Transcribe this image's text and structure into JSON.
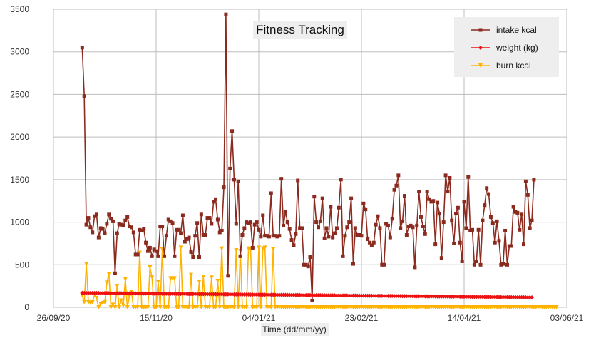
{
  "chart_data": {
    "type": "line",
    "title": "Fitness Tracking",
    "xlabel": "Time (dd/mm/yy)",
    "ylabel": "",
    "xlim": [
      "2020-09-26",
      "2021-06-03"
    ],
    "ylim": [
      0,
      3500
    ],
    "x_ticks": [
      "26/09/20",
      "15/11/20",
      "04/01/21",
      "23/02/21",
      "14/04/21",
      "03/06/21"
    ],
    "y_ticks": [
      0,
      500,
      1000,
      1500,
      2000,
      2500,
      3000,
      3500
    ],
    "grid": true,
    "legend_position": "top-right",
    "series": [
      {
        "name": "intake kcal",
        "color": "#8b2a1e",
        "marker": "square",
        "start": "2020-10-10",
        "step_days": 1,
        "values": [
          3050,
          2480,
          970,
          1050,
          940,
          880,
          1070,
          1090,
          820,
          930,
          920,
          870,
          980,
          1090,
          1040,
          1010,
          400,
          870,
          980,
          970,
          960,
          1020,
          1060,
          950,
          940,
          880,
          620,
          620,
          910,
          900,
          920,
          760,
          660,
          700,
          600,
          680,
          660,
          600,
          950,
          950,
          600,
          840,
          1030,
          1010,
          990,
          600,
          910,
          910,
          870,
          1080,
          770,
          800,
          820,
          650,
          590,
          840,
          990,
          590,
          1090,
          850,
          850,
          1050,
          1050,
          980,
          1240,
          1270,
          1030,
          880,
          900,
          1410,
          3440,
          370,
          1630,
          2070,
          1500,
          980,
          1480,
          600,
          850,
          930,
          1000,
          990,
          1000,
          700,
          970,
          1000,
          910,
          830,
          1080,
          840,
          840,
          830,
          1340,
          840,
          840,
          830,
          840,
          1510,
          960,
          1120,
          1000,
          920,
          790,
          730,
          860,
          1490,
          930,
          930,
          500,
          500,
          480,
          590,
          80,
          1300,
          1000,
          940,
          1010,
          1280,
          810,
          930,
          830,
          1180,
          820,
          870,
          930,
          1170,
          1500,
          600,
          840,
          940,
          1000,
          1280,
          510,
          930,
          850,
          850,
          840,
          1220,
          1150,
          800,
          760,
          730,
          760,
          970,
          1070,
          930,
          500,
          500,
          980,
          960,
          820,
          1040,
          1380,
          1430,
          1550,
          930,
          1010,
          1310,
          850,
          950,
          960,
          940,
          470,
          960,
          1360,
          1060,
          950,
          860,
          1360,
          1270,
          1240,
          1250,
          740,
          1230,
          1100,
          580,
          1000,
          1550,
          1360,
          1520,
          1020,
          750,
          1100,
          1170,
          760,
          540,
          1240,
          930,
          1530,
          900,
          910,
          500,
          540,
          910,
          500,
          1020,
          1200,
          1400,
          1330,
          1060,
          990,
          760,
          1010,
          780,
          500,
          510,
          900,
          500,
          720,
          720,
          1180,
          1120,
          1110,
          910,
          1090,
          740,
          1480,
          1320,
          930,
          1020,
          1500
        ]
      },
      {
        "name": "weight (kg)",
        "color": "#ee1111",
        "marker": "diamond",
        "start": "2020-10-10",
        "step_days": 1,
        "values_linear": [
          170,
          117
        ],
        "count": 220
      },
      {
        "name": "burn kcal",
        "color": "#ffb300",
        "marker": "triangle-down",
        "start": "2020-10-10",
        "step_days": 1,
        "values": [
          140,
          60,
          510,
          60,
          50,
          60,
          150,
          110,
          0,
          40,
          50,
          60,
          290,
          390,
          0,
          30,
          0,
          250,
          0,
          80,
          20,
          330,
          0,
          130,
          180,
          0,
          0,
          0,
          640,
          0,
          0,
          0,
          0,
          470,
          350,
          0,
          0,
          300,
          0,
          680,
          0,
          0,
          0,
          340,
          340,
          340,
          0,
          0,
          700,
          0,
          0,
          0,
          0,
          380,
          0,
          0,
          0,
          300,
          0,
          360,
          0,
          0,
          0,
          350,
          0,
          0,
          310,
          0,
          690,
          0,
          0,
          0,
          0,
          0,
          0,
          670,
          0,
          660,
          0,
          0,
          0,
          690,
          690,
          0,
          0,
          0,
          700,
          0,
          690,
          700,
          0,
          0,
          0,
          680,
          0,
          0,
          0,
          0,
          0,
          0,
          0,
          0,
          0,
          0,
          0,
          0,
          0,
          0,
          0,
          0,
          0,
          0,
          0,
          0,
          0,
          0,
          0,
          0,
          0,
          0,
          0,
          0,
          0,
          0,
          0,
          0,
          0,
          0,
          0,
          0,
          0,
          0,
          0,
          0,
          0,
          0,
          0,
          0,
          0,
          0,
          0,
          0,
          0,
          0,
          0,
          0,
          0,
          0,
          0,
          0,
          0,
          0,
          0,
          0,
          0,
          0,
          0,
          0,
          0,
          0,
          0,
          0,
          0,
          0,
          0,
          0,
          0,
          0,
          0,
          0,
          0,
          0,
          0,
          0,
          0,
          0,
          0,
          0,
          0,
          0,
          0,
          0,
          0,
          0,
          0,
          0,
          0,
          0,
          0,
          0,
          0,
          0,
          0,
          0,
          0,
          0,
          0,
          0,
          0,
          0,
          0,
          0,
          0,
          0,
          0,
          0,
          0,
          0,
          0,
          0,
          0,
          0,
          0,
          0,
          0,
          0,
          0,
          0,
          0,
          0,
          0,
          0,
          0,
          0,
          0,
          0,
          0,
          0,
          0,
          0,
          0,
          0
        ]
      }
    ]
  }
}
